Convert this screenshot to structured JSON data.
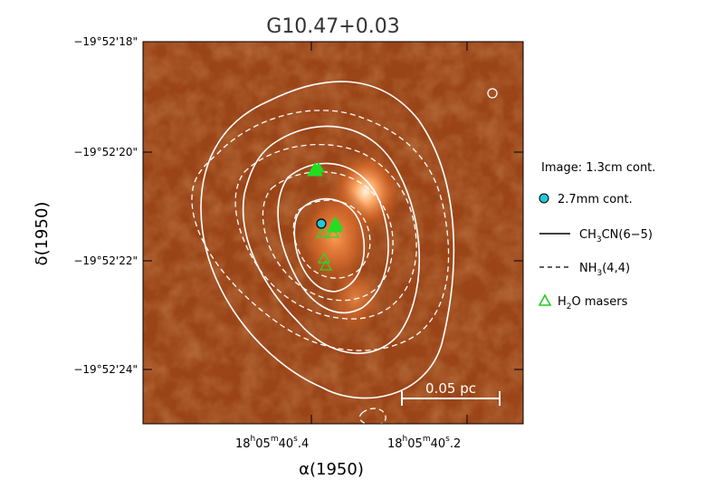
{
  "title": "G10.47+0.03",
  "axes": {
    "y_label": "δ(1950)",
    "x_label": "α(1950)",
    "y_ticks": [
      "−19°52'18\"",
      "−19°52'20\"",
      "−19°52'22\"",
      "−19°52'24\""
    ],
    "x_ticks": [
      {
        "h": "18",
        "m": "05",
        "s": "40",
        "frac": "4"
      },
      {
        "h": "18",
        "m": "05",
        "s": "40",
        "frac": "2"
      }
    ]
  },
  "scale_bar_label": "0.05 pc",
  "legend": {
    "image_caption": "Image: 1.3cm cont.",
    "items": [
      {
        "symbol": "cyan-circle",
        "label": "2.7mm cont."
      },
      {
        "symbol": "solid-line",
        "label_main": "CH",
        "label_sub1": "3",
        "label_mid": "CN(6−5)"
      },
      {
        "symbol": "dashed-line",
        "label_main": "NH",
        "label_sub1": "3",
        "label_mid": "(4,4)"
      },
      {
        "symbol": "green-triangle",
        "label_main": "H",
        "label_sub1": "2",
        "label_mid": "O masers"
      }
    ]
  },
  "colors": {
    "background_map": "#8a3a12",
    "hotspot": "#fff0d0",
    "contour": "#ffffff",
    "maser": "#22dd22",
    "continuum_marker": "#22c8d8"
  }
}
